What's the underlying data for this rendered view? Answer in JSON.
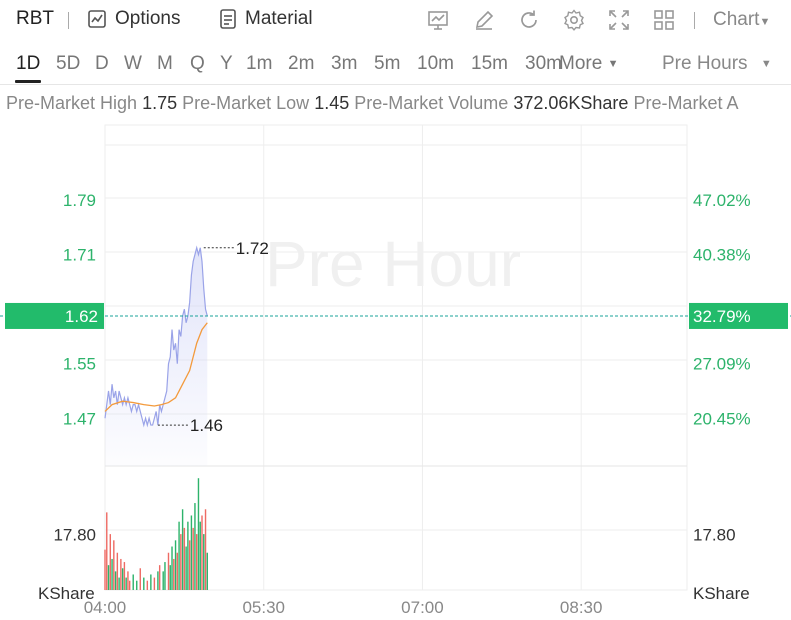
{
  "toolbar": {
    "symbol": "RBT",
    "options_label": "Options",
    "material_label": "Material",
    "chart_label": "Chart"
  },
  "periods": {
    "items": [
      "1D",
      "5D",
      "D",
      "W",
      "M",
      "Q",
      "Y",
      "1m",
      "2m",
      "3m",
      "5m",
      "10m",
      "15m",
      "30m"
    ],
    "active": "1D",
    "more_label": "More",
    "session_label": "Pre Hours"
  },
  "stats": {
    "high_label": "Pre-Market High",
    "high_value": "1.75",
    "low_label": "Pre-Market Low",
    "low_value": "1.45",
    "volume_label": "Pre-Market Volume",
    "volume_value": "372.06KShare",
    "avg_label": "Pre-Market A"
  },
  "chart_data": {
    "type": "line",
    "watermark": "Pre Hour",
    "x_ticks": [
      "04:00",
      "05:30",
      "07:00",
      "08:30"
    ],
    "x_range_minutes": [
      0,
      330
    ],
    "price_axis": {
      "ticks": [
        1.79,
        1.71,
        1.55,
        1.47
      ],
      "tick_labels": [
        "1.79",
        "1.71",
        "1.55",
        "1.47"
      ],
      "range": [
        1.4,
        1.9
      ]
    },
    "percent_axis": {
      "tick_labels": [
        "47.02%",
        "40.38%",
        "27.09%",
        "20.45%"
      ]
    },
    "current": {
      "price": 1.62,
      "price_label": "1.62",
      "percent_label": "32.79%"
    },
    "annotations": [
      {
        "label": "1.72",
        "minute": 56,
        "price": 1.72
      },
      {
        "label": "1.46",
        "minute": 30,
        "price": 1.46
      }
    ],
    "volume_axis": {
      "tick_label": "17.80",
      "tick_value": 17.8,
      "unit": "KShare",
      "range": [
        0,
        38
      ]
    },
    "series": [
      {
        "role": "price",
        "color": "#9aa3e8",
        "points": [
          [
            0,
            1.47
          ],
          [
            1,
            1.49
          ],
          [
            2,
            1.51
          ],
          [
            3,
            1.49
          ],
          [
            4,
            1.52
          ],
          [
            5,
            1.5
          ],
          [
            6,
            1.51
          ],
          [
            7,
            1.49
          ],
          [
            8,
            1.51
          ],
          [
            9,
            1.5
          ],
          [
            10,
            1.49
          ],
          [
            11,
            1.5
          ],
          [
            12,
            1.49
          ],
          [
            13,
            1.5
          ],
          [
            14,
            1.49
          ],
          [
            15,
            1.48
          ],
          [
            16,
            1.49
          ],
          [
            17,
            1.49
          ],
          [
            18,
            1.48
          ],
          [
            19,
            1.49
          ],
          [
            20,
            1.48
          ],
          [
            21,
            1.47
          ],
          [
            22,
            1.46
          ],
          [
            23,
            1.47
          ],
          [
            24,
            1.46
          ],
          [
            25,
            1.47
          ],
          [
            26,
            1.46
          ],
          [
            27,
            1.46
          ],
          [
            28,
            1.47
          ],
          [
            29,
            1.48
          ],
          [
            30,
            1.46
          ],
          [
            31,
            1.49
          ],
          [
            32,
            1.48
          ],
          [
            33,
            1.49
          ],
          [
            34,
            1.5
          ],
          [
            35,
            1.51
          ],
          [
            36,
            1.55
          ],
          [
            37,
            1.56
          ],
          [
            38,
            1.6
          ],
          [
            39,
            1.57
          ],
          [
            40,
            1.58
          ],
          [
            41,
            1.55
          ],
          [
            42,
            1.6
          ],
          [
            43,
            1.59
          ],
          [
            44,
            1.62
          ],
          [
            45,
            1.63
          ],
          [
            46,
            1.61
          ],
          [
            47,
            1.62
          ],
          [
            48,
            1.64
          ],
          [
            49,
            1.68
          ],
          [
            50,
            1.7
          ],
          [
            51,
            1.71
          ],
          [
            52,
            1.72
          ],
          [
            53,
            1.71
          ],
          [
            54,
            1.72
          ],
          [
            55,
            1.7
          ],
          [
            56,
            1.66
          ],
          [
            57,
            1.63
          ],
          [
            58,
            1.62
          ]
        ]
      },
      {
        "role": "average",
        "color": "#f39a3c",
        "points": [
          [
            0,
            1.48
          ],
          [
            4,
            1.49
          ],
          [
            10,
            1.495
          ],
          [
            16,
            1.493
          ],
          [
            22,
            1.49
          ],
          [
            28,
            1.488
          ],
          [
            32,
            1.49
          ],
          [
            36,
            1.493
          ],
          [
            40,
            1.5
          ],
          [
            44,
            1.52
          ],
          [
            48,
            1.54
          ],
          [
            52,
            1.58
          ],
          [
            55,
            1.6
          ],
          [
            58,
            1.61
          ]
        ]
      }
    ],
    "volume": [
      {
        "m": 0,
        "v": 13,
        "c": "#ee6b64"
      },
      {
        "m": 1,
        "v": 25,
        "c": "#ee6b64"
      },
      {
        "m": 2,
        "v": 8,
        "c": "#2db36b"
      },
      {
        "m": 3,
        "v": 18,
        "c": "#ee6b64"
      },
      {
        "m": 4,
        "v": 10,
        "c": "#2db36b"
      },
      {
        "m": 5,
        "v": 16,
        "c": "#ee6b64"
      },
      {
        "m": 6,
        "v": 6,
        "c": "#2db36b"
      },
      {
        "m": 7,
        "v": 12,
        "c": "#ee6b64"
      },
      {
        "m": 8,
        "v": 4,
        "c": "#2db36b"
      },
      {
        "m": 9,
        "v": 10,
        "c": "#ee6b64"
      },
      {
        "m": 10,
        "v": 7,
        "c": "#2db36b"
      },
      {
        "m": 11,
        "v": 9,
        "c": "#ee6b64"
      },
      {
        "m": 12,
        "v": 4,
        "c": "#2db36b"
      },
      {
        "m": 13,
        "v": 6,
        "c": "#ee6b64"
      },
      {
        "m": 14,
        "v": 3,
        "c": "#ee6b64"
      },
      {
        "m": 16,
        "v": 5,
        "c": "#2db36b"
      },
      {
        "m": 18,
        "v": 3,
        "c": "#2db36b"
      },
      {
        "m": 20,
        "v": 7,
        "c": "#ee6b64"
      },
      {
        "m": 22,
        "v": 4,
        "c": "#2db36b"
      },
      {
        "m": 24,
        "v": 3,
        "c": "#ee6b64"
      },
      {
        "m": 26,
        "v": 5,
        "c": "#2db36b"
      },
      {
        "m": 28,
        "v": 4,
        "c": "#ee6b64"
      },
      {
        "m": 30,
        "v": 6,
        "c": "#2db36b"
      },
      {
        "m": 31,
        "v": 8,
        "c": "#ee6b64"
      },
      {
        "m": 33,
        "v": 6,
        "c": "#2db36b"
      },
      {
        "m": 34,
        "v": 9,
        "c": "#2db36b"
      },
      {
        "m": 36,
        "v": 12,
        "c": "#ee6b64"
      },
      {
        "m": 37,
        "v": 8,
        "c": "#2db36b"
      },
      {
        "m": 38,
        "v": 14,
        "c": "#2db36b"
      },
      {
        "m": 39,
        "v": 10,
        "c": "#ee6b64"
      },
      {
        "m": 40,
        "v": 16,
        "c": "#2db36b"
      },
      {
        "m": 41,
        "v": 12,
        "c": "#ee6b64"
      },
      {
        "m": 42,
        "v": 22,
        "c": "#2db36b"
      },
      {
        "m": 43,
        "v": 18,
        "c": "#ee6b64"
      },
      {
        "m": 44,
        "v": 26,
        "c": "#2db36b"
      },
      {
        "m": 45,
        "v": 20,
        "c": "#ee6b64"
      },
      {
        "m": 46,
        "v": 14,
        "c": "#2db36b"
      },
      {
        "m": 47,
        "v": 22,
        "c": "#2db36b"
      },
      {
        "m": 48,
        "v": 16,
        "c": "#ee6b64"
      },
      {
        "m": 49,
        "v": 24,
        "c": "#2db36b"
      },
      {
        "m": 50,
        "v": 20,
        "c": "#ee6b64"
      },
      {
        "m": 51,
        "v": 28,
        "c": "#2db36b"
      },
      {
        "m": 52,
        "v": 18,
        "c": "#ee6b64"
      },
      {
        "m": 53,
        "v": 36,
        "c": "#2db36b"
      },
      {
        "m": 54,
        "v": 22,
        "c": "#2db36b"
      },
      {
        "m": 55,
        "v": 24,
        "c": "#ee6b64"
      },
      {
        "m": 56,
        "v": 18,
        "c": "#2db36b"
      },
      {
        "m": 57,
        "v": 26,
        "c": "#ee6b64"
      },
      {
        "m": 58,
        "v": 12,
        "c": "#2db36b"
      }
    ],
    "colors": {
      "up": "#2db36b",
      "down": "#ee6b64",
      "axis_text": "#2db36b",
      "current_line": "#1aa39a",
      "current_badge": "#22bb6b"
    }
  }
}
